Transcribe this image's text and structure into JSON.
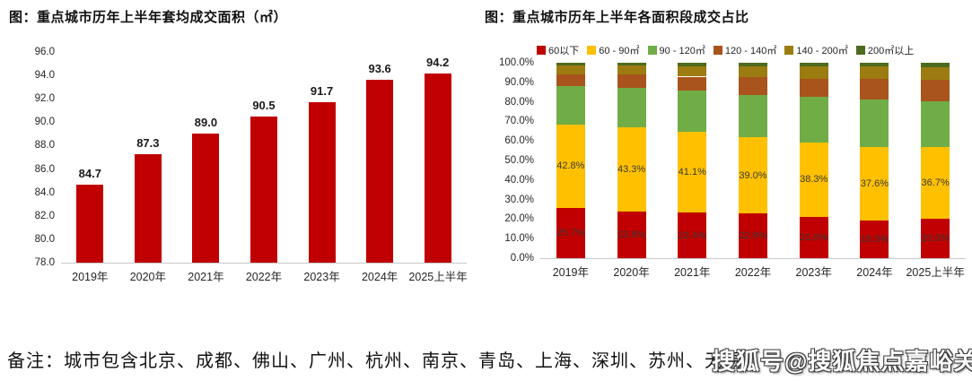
{
  "note": "备注：城市包含北京、成都、佛山、广州、杭州、南京、青岛、上海、深圳、苏州、无锡",
  "watermark": "搜狐号@搜狐焦点嘉峪关站",
  "chart_data": [
    {
      "type": "bar",
      "title": "图：重点城市历年上半年套均成交面积（㎡）",
      "categories": [
        "2019年",
        "2020年",
        "2021年",
        "2022年",
        "2023年",
        "2024年",
        "2025上半年"
      ],
      "values": [
        84.7,
        87.3,
        89.0,
        90.5,
        91.7,
        93.6,
        94.2
      ],
      "value_labels": [
        "84.7",
        "87.3",
        "89.0",
        "90.5",
        "91.7",
        "93.6",
        "94.2"
      ],
      "ylim": [
        78.0,
        96.0
      ],
      "ytick_labels": [
        "96.0",
        "94.0",
        "92.0",
        "90.0",
        "88.0",
        "86.0",
        "84.0",
        "82.0",
        "80.0",
        "78.0"
      ],
      "bar_color": "#c00000",
      "grid": false,
      "legend_position": "none"
    },
    {
      "type": "stacked-bar-percent",
      "title": "图：重点城市历年上半年各面积段成交占比",
      "categories": [
        "2019年",
        "2020年",
        "2021年",
        "2022年",
        "2023年",
        "2024年",
        "2025上半年"
      ],
      "ylim": [
        0,
        100
      ],
      "ytick_labels": [
        "100.0%",
        "90.0%",
        "80.0%",
        "70.0%",
        "60.0%",
        "50.0%",
        "40.0%",
        "30.0%",
        "20.0%",
        "10.0%",
        "0.0%"
      ],
      "grid": false,
      "legend_position": "top",
      "series": [
        {
          "name": "60以下",
          "color": "#c00000",
          "values": [
            25.7,
            23.8,
            23.4,
            22.8,
            21.0,
            19.3,
            20.0
          ],
          "labels": [
            "25.7%",
            "23.8%",
            "23.4%",
            "22.8%",
            "21.0%",
            "19.3%",
            "20.0%"
          ]
        },
        {
          "name": "60 - 90㎡",
          "color": "#ffc000",
          "values": [
            42.8,
            43.3,
            41.1,
            39.0,
            38.3,
            37.6,
            36.7
          ],
          "labels": [
            "42.8%",
            "43.3%",
            "41.1%",
            "39.0%",
            "38.3%",
            "37.6%",
            "36.7%"
          ]
        },
        {
          "name": "90 - 120㎡",
          "color": "#70ad47",
          "values": [
            19.4,
            20.0,
            21.1,
            21.5,
            23.2,
            24.1,
            23.6
          ]
        },
        {
          "name": "120 - 140㎡",
          "color": "#a8541c",
          "values": [
            6.1,
            7.0,
            7.3,
            9.3,
            9.4,
            10.7,
            11.1
          ]
        },
        {
          "name": "140 - 200㎡",
          "color": "#9c7c10",
          "values": [
            4.8,
            4.6,
            5.5,
            5.6,
            6.2,
            6.3,
            6.4
          ]
        },
        {
          "name": "200㎡以上",
          "color": "#4c6b1f",
          "values": [
            1.2,
            1.3,
            1.6,
            1.8,
            1.9,
            2.0,
            2.2
          ]
        }
      ]
    }
  ]
}
